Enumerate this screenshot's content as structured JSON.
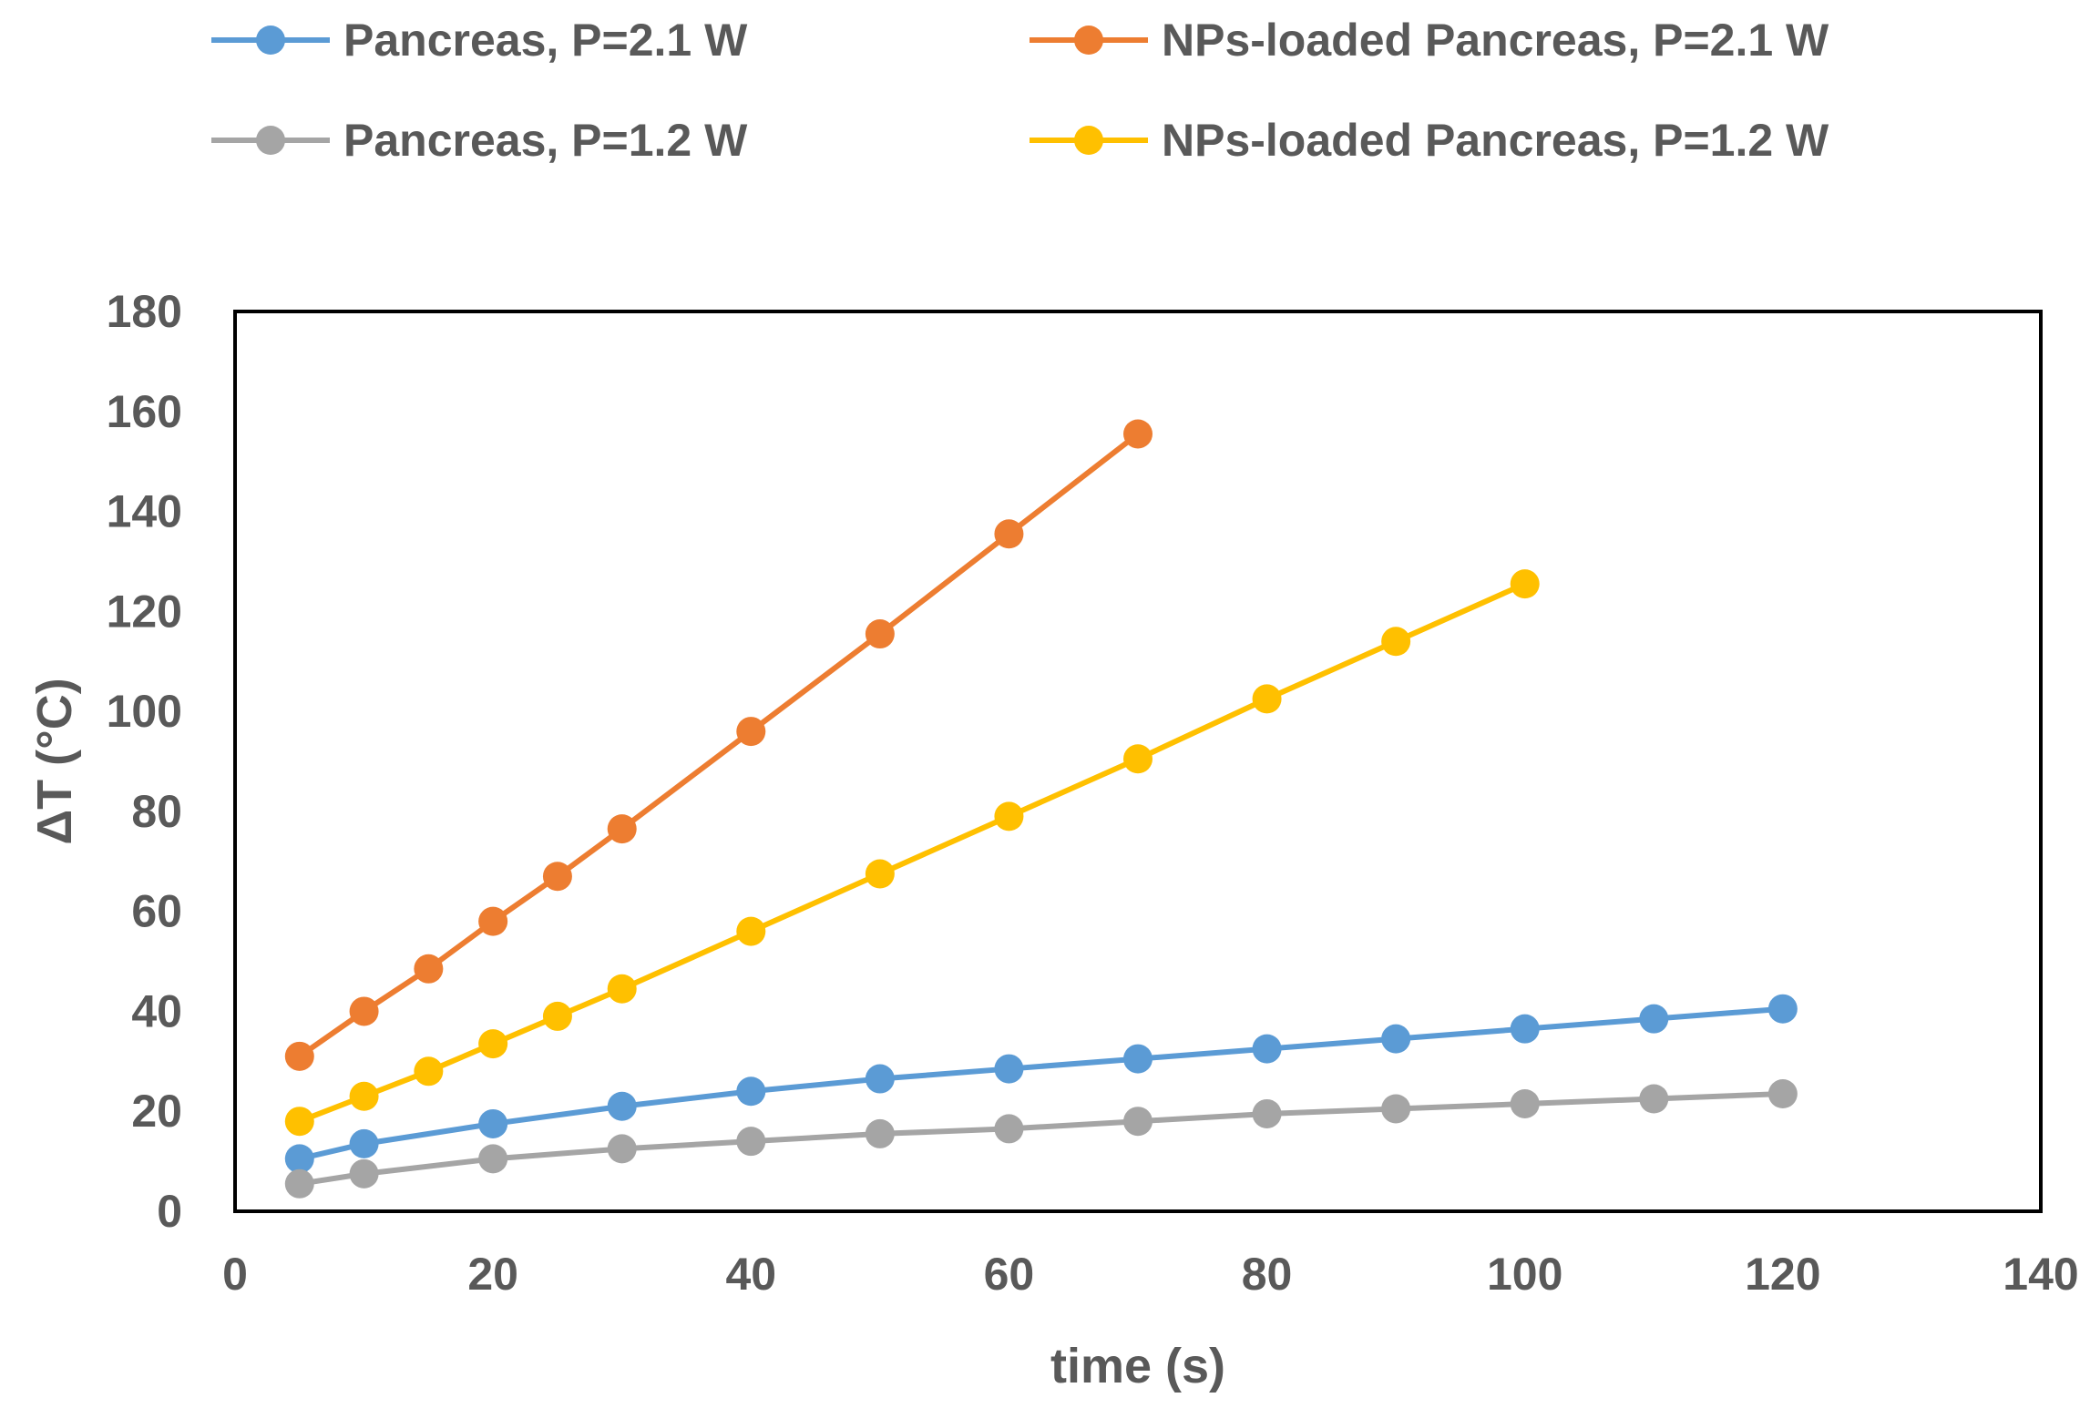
{
  "chart_data": {
    "type": "line",
    "title": "",
    "xlabel": "time (s)",
    "ylabel": "ΔT (°C)",
    "xlim": [
      0,
      140
    ],
    "ylim": [
      0,
      180
    ],
    "xticks": [
      0,
      20,
      40,
      60,
      80,
      100,
      120,
      140
    ],
    "yticks": [
      0,
      20,
      40,
      60,
      80,
      100,
      120,
      140,
      160,
      180
    ],
    "grid": false,
    "legend_position": "top",
    "series": [
      {
        "name": "Pancreas, P=2.1 W",
        "color": "#5b9bd5",
        "x": [
          5,
          10,
          20,
          30,
          40,
          50,
          60,
          70,
          80,
          90,
          100,
          110,
          120
        ],
        "y": [
          10.5,
          13.5,
          17.5,
          21,
          24,
          26.5,
          28.5,
          30.5,
          32.5,
          34.5,
          36.5,
          38.5,
          40.5
        ]
      },
      {
        "name": "NPs-loaded Pancreas, P=2.1 W",
        "color": "#ed7d31",
        "x": [
          5,
          10,
          15,
          20,
          25,
          30,
          40,
          50,
          60,
          70
        ],
        "y": [
          31,
          40,
          48.5,
          58,
          67,
          76.5,
          96,
          115.5,
          135.5,
          155.5
        ]
      },
      {
        "name": "Pancreas, P=1.2 W",
        "color": "#a5a5a5",
        "x": [
          5,
          10,
          20,
          30,
          40,
          50,
          60,
          70,
          80,
          90,
          100,
          110,
          120
        ],
        "y": [
          5.5,
          7.5,
          10.5,
          12.5,
          14,
          15.5,
          16.5,
          18,
          19.5,
          20.5,
          21.5,
          22.5,
          23.5
        ]
      },
      {
        "name": "NPs-loaded Pancreas, P=1.2 W",
        "color": "#ffc000",
        "x": [
          5,
          10,
          15,
          20,
          25,
          30,
          40,
          50,
          60,
          70,
          80,
          90,
          100
        ],
        "y": [
          18,
          23,
          28,
          33.5,
          39,
          44.5,
          56,
          67.5,
          79,
          90.5,
          102.5,
          114,
          125.5
        ]
      }
    ]
  }
}
